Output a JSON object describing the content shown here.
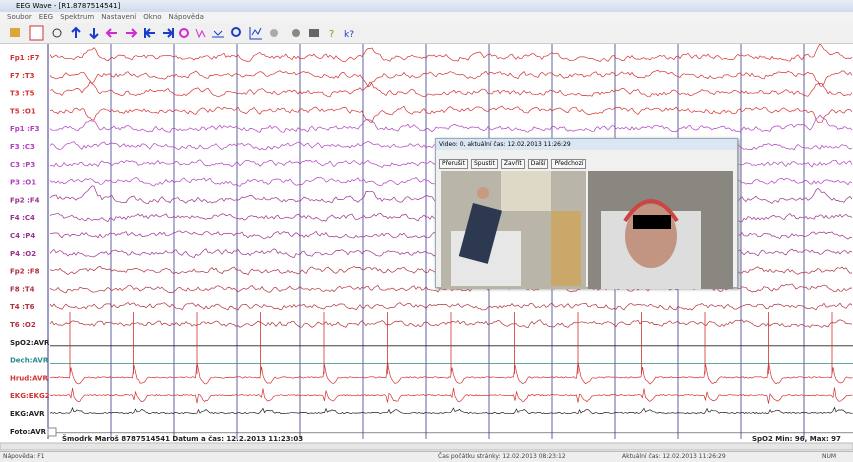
{
  "window": {
    "title": "EEG Wave - [R1.8787514541]"
  },
  "menu": [
    "Soubor",
    "EEG",
    "Spektrum",
    "Nastavení",
    "Okno",
    "Nápověda"
  ],
  "channels": [
    "Fp1 :F7",
    "F7 :T3",
    "T3 :T5",
    "T5 :O1",
    "Fp1 :F3",
    "F3 :C3",
    "C3 :P3",
    "P3 :O1",
    "Fp2 :F4",
    "F4 :C4",
    "C4 :P4",
    "P4 :O2",
    "Fp2 :F8",
    "F8 :T4",
    "T4 :T6",
    "T6 :O2",
    "SpO2:AVR",
    "Dech:AVR",
    "Hrud:AVR",
    "EKG:EKG2",
    "EKG:AVR",
    "Foto:AVR"
  ],
  "footer": {
    "patient": "Šmodrk Maroš 8787514541 Datum a čas: 12.2.2013 11:23:03",
    "spo2": "SpO2 Min: 96, Max: 97"
  },
  "video": {
    "title": "Video: 0, aktuální čas: 12.02.2013 11:26:29",
    "buttons": [
      "Přerušit",
      "Spustit",
      "Zavřít",
      "Další",
      "Předchozí"
    ]
  },
  "status": [
    "Nápověda: F1",
    "Čas počátku stránky: 12.02.2013 08:23:12",
    "Aktuální čas: 12.02.2013 11:26:29",
    "NUM"
  ]
}
